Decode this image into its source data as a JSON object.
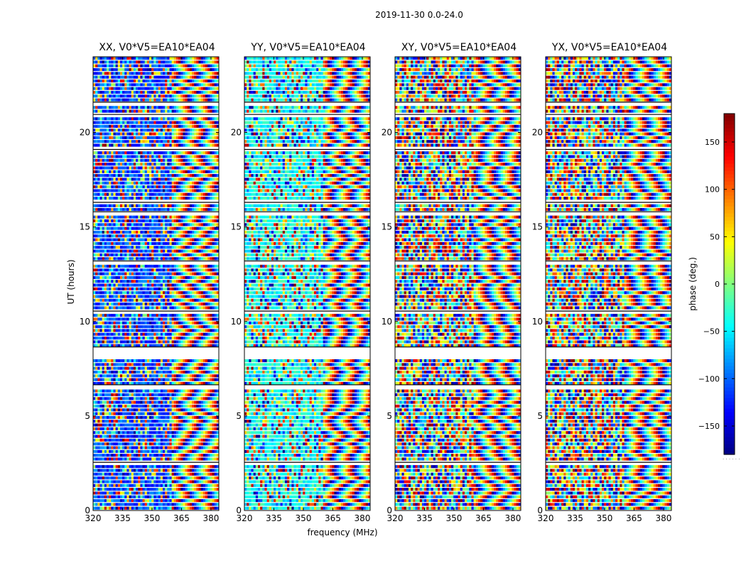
{
  "chart_data": {
    "type": "heatmap",
    "suptitle": "2019-11-30 0.0-24.0",
    "xlabel": "frequency (MHz)",
    "ylabel": "UT (hours)",
    "colorbar_label": "phase (deg.)",
    "colorbar_min": -180,
    "colorbar_max": 180,
    "colorbar_ticks": [
      -150,
      -100,
      -50,
      0,
      50,
      100,
      150
    ],
    "colormap": [
      "#00007f",
      "#0000ff",
      "#00ffff",
      "#7fff7f",
      "#ffff00",
      "#ff0000",
      "#7f0000"
    ],
    "x_ticks": [
      320,
      335,
      350,
      365,
      380
    ],
    "x_range": [
      320,
      384
    ],
    "y_ticks": [
      0,
      5,
      10,
      15,
      20
    ],
    "y_range": [
      0,
      24
    ],
    "colorbar_caption": ". . . . . .",
    "panels": [
      {
        "title": "XX, V0*V5=EA10*EA04",
        "dominant_phase_low_freq": -110
      },
      {
        "title": "YY, V0*V5=EA10*EA04",
        "dominant_phase_low_freq": -40
      },
      {
        "title": "XY, V0*V5=EA10*EA04",
        "dominant_phase_low_freq": 0
      },
      {
        "title": "YX, V0*V5=EA10*EA04",
        "dominant_phase_low_freq": 0
      }
    ],
    "blank_ut_bands": [
      [
        2.4,
        2.55
      ],
      [
        6.5,
        6.65
      ],
      [
        8.1,
        8.65
      ],
      [
        10.4,
        10.55
      ],
      [
        13.1,
        13.2
      ],
      [
        15.7,
        15.8
      ],
      [
        16.15,
        16.3
      ],
      [
        18.95,
        19.1
      ],
      [
        20.8,
        20.95
      ],
      [
        21.45,
        21.6
      ]
    ]
  }
}
